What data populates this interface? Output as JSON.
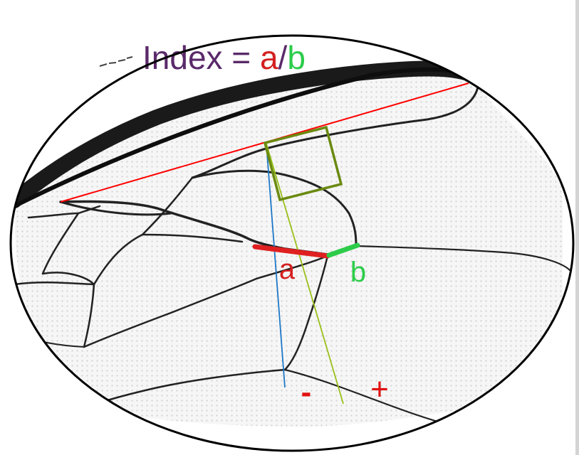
{
  "formula": {
    "prefix": "Index = ",
    "numerator": "a",
    "separator": "/",
    "denominator": "b"
  },
  "labels": {
    "segment_a": "a",
    "segment_b": "b",
    "minus": "-",
    "plus": "+"
  },
  "colors": {
    "formula_text": "#5a2a6a",
    "segment_a": "#e02020",
    "segment_b": "#2ccc4a",
    "reference_line": "#ff0000",
    "blue_line": "#1e78c8",
    "green_line": "#9ac01a",
    "square": "#6a8a10",
    "sign_marks": "#e01010",
    "wing_vein": "#222222"
  }
}
